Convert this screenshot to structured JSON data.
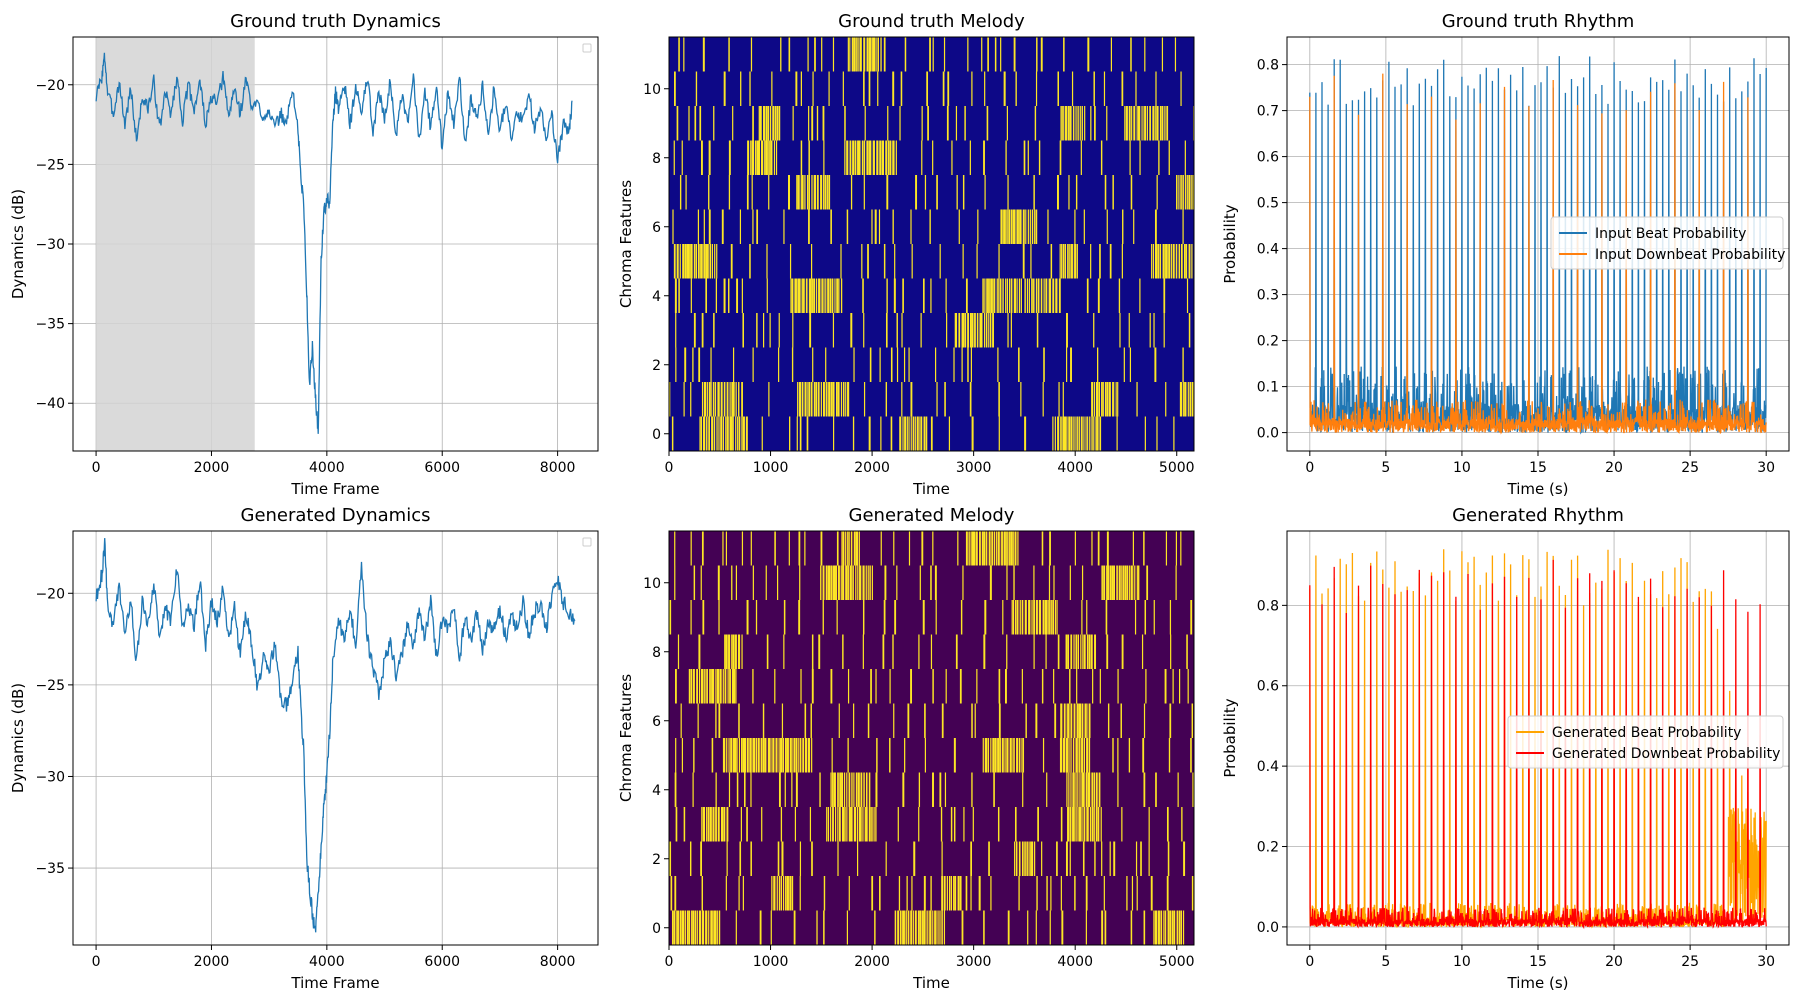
{
  "colors": {
    "blue": "#1f77b4",
    "orange": "#ff7f0e",
    "gen_beat": "#ffa500",
    "gen_downbeat": "#ff0000",
    "gray_region": "#d3d3d3",
    "plasma_bg": "#0d0887",
    "viridis_bg": "#440154",
    "active": "#fde725",
    "grid": "#b0b0b0"
  },
  "chart_data": [
    {
      "id": "gt_dynamics",
      "type": "line",
      "title": "Ground truth Dynamics",
      "xlabel": "Time Frame",
      "ylabel": "Dynamics (dB)",
      "xlim": [
        -400,
        8700
      ],
      "ylim": [
        -43,
        -17
      ],
      "xticks": [
        0,
        2000,
        4000,
        6000,
        8000
      ],
      "yticks": [
        -40,
        -35,
        -30,
        -25,
        -20
      ],
      "grid": true,
      "highlight_span": [
        0,
        2750
      ],
      "empty_legend": true,
      "series": [
        {
          "values_x": [
            0,
            100,
            150,
            200,
            300,
            400,
            500,
            600,
            700,
            800,
            900,
            1000,
            1100,
            1200,
            1300,
            1400,
            1500,
            1600,
            1700,
            1800,
            1900,
            2000,
            2100,
            2200,
            2300,
            2400,
            2500,
            2600,
            2700,
            2800,
            2900,
            3000,
            3100,
            3200,
            3300,
            3400,
            3500,
            3550,
            3600,
            3650,
            3700,
            3750,
            3800,
            3850,
            3900,
            3950,
            4000,
            4050,
            4100,
            4150,
            4200,
            4300,
            4400,
            4500,
            4600,
            4700,
            4800,
            4900,
            5000,
            5100,
            5200,
            5300,
            5400,
            5500,
            5600,
            5700,
            5800,
            5900,
            6000,
            6100,
            6200,
            6300,
            6400,
            6500,
            6600,
            6700,
            6800,
            6900,
            7000,
            7100,
            7200,
            7300,
            7400,
            7500,
            7600,
            7700,
            7800,
            7900,
            8000,
            8100,
            8200,
            8250
          ],
          "values_y": [
            -20.8,
            -19.5,
            -18.2,
            -20.5,
            -21.8,
            -19.8,
            -22.5,
            -20.2,
            -23.5,
            -20.8,
            -21.5,
            -19.8,
            -22.8,
            -20.5,
            -21.8,
            -19.5,
            -22.2,
            -20.0,
            -21.5,
            -19.8,
            -22.5,
            -20.8,
            -21.2,
            -19.5,
            -22.0,
            -20.2,
            -21.8,
            -19.6,
            -21.5,
            -21.2,
            -22.0,
            -21.5,
            -22.8,
            -21.8,
            -22.5,
            -20.2,
            -22.8,
            -25.8,
            -27.5,
            -33.0,
            -38.8,
            -36.5,
            -39.5,
            -41.8,
            -31.0,
            -28.0,
            -27.2,
            -27.5,
            -22.5,
            -20.5,
            -21.5,
            -19.8,
            -22.5,
            -20.2,
            -21.8,
            -19.5,
            -22.8,
            -20.5,
            -22.0,
            -19.8,
            -23.2,
            -20.8,
            -22.5,
            -19.5,
            -23.5,
            -20.2,
            -22.8,
            -19.8,
            -24.0,
            -20.5,
            -22.5,
            -19.6,
            -23.8,
            -20.8,
            -22.2,
            -20.0,
            -23.0,
            -20.2,
            -22.8,
            -21.0,
            -23.5,
            -21.8,
            -22.2,
            -20.5,
            -22.8,
            -21.5,
            -23.2,
            -21.8,
            -24.8,
            -22.5,
            -23.0,
            -21.0
          ]
        }
      ]
    },
    {
      "id": "gt_melody",
      "type": "heatmap",
      "title": "Ground truth Melody",
      "xlabel": "Time",
      "ylabel": "Chroma Features",
      "xlim": [
        0,
        5170
      ],
      "ylim": [
        -0.5,
        11.5
      ],
      "xticks": [
        0,
        1000,
        2000,
        3000,
        4000,
        5000
      ],
      "yticks": [
        0,
        2,
        4,
        6,
        8,
        10
      ],
      "colormap": "plasma",
      "seed": 7
    },
    {
      "id": "gt_rhythm",
      "type": "line",
      "title": "Ground truth Rhythm",
      "xlabel": "Time (s)",
      "ylabel": "Probability",
      "xlim": [
        -1.5,
        31.5
      ],
      "ylim": [
        -0.04,
        0.86
      ],
      "xticks": [
        0,
        5,
        10,
        15,
        20,
        25,
        30
      ],
      "yticks": [
        0.0,
        0.1,
        0.2,
        0.3,
        0.4,
        0.5,
        0.6,
        0.7,
        0.8
      ],
      "grid": true,
      "legend_position": "center-right",
      "series": [
        {
          "name": "Input Beat Probability",
          "color_key": "blue",
          "beat_period": 0.4,
          "peak_range": [
            0.71,
            0.82
          ],
          "noise": 0.12
        },
        {
          "name": "Input Downbeat Probability",
          "color_key": "orange",
          "beat_period": 1.6,
          "peak_range": [
            0.68,
            0.79
          ],
          "noise": 0.06,
          "first_peak": 0.73,
          "last_peak": 0.23
        }
      ]
    },
    {
      "id": "gen_dynamics",
      "type": "line",
      "title": "Generated Dynamics",
      "xlabel": "Time Frame",
      "ylabel": "Dynamics (dB)",
      "xlim": [
        -400,
        8700
      ],
      "ylim": [
        -39.2,
        -16.6
      ],
      "xticks": [
        0,
        2000,
        4000,
        6000,
        8000
      ],
      "yticks": [
        -35,
        -30,
        -25,
        -20
      ],
      "grid": true,
      "empty_legend": true,
      "series": [
        {
          "values_x": [
            0,
            100,
            150,
            200,
            300,
            400,
            500,
            600,
            700,
            800,
            900,
            1000,
            1100,
            1200,
            1300,
            1400,
            1500,
            1600,
            1700,
            1800,
            1900,
            2000,
            2100,
            2200,
            2300,
            2400,
            2500,
            2600,
            2700,
            2800,
            2900,
            3000,
            3100,
            3200,
            3300,
            3400,
            3500,
            3550,
            3600,
            3650,
            3700,
            3750,
            3800,
            3850,
            3900,
            3950,
            4000,
            4050,
            4100,
            4200,
            4300,
            4400,
            4500,
            4600,
            4700,
            4800,
            4900,
            5000,
            5100,
            5200,
            5300,
            5400,
            5500,
            5600,
            5700,
            5800,
            5900,
            6000,
            6100,
            6200,
            6300,
            6400,
            6500,
            6600,
            6700,
            6800,
            6900,
            7000,
            7100,
            7200,
            7300,
            7400,
            7500,
            7600,
            7700,
            7800,
            7900,
            8000,
            8100,
            8200,
            8300
          ],
          "values_y": [
            -20.3,
            -19.0,
            -17.2,
            -20.5,
            -21.8,
            -19.5,
            -22.5,
            -20.2,
            -23.8,
            -20.5,
            -21.8,
            -19.5,
            -22.5,
            -20.8,
            -21.5,
            -18.5,
            -22.0,
            -20.5,
            -21.8,
            -19.2,
            -22.8,
            -20.5,
            -21.5,
            -19.8,
            -22.5,
            -20.8,
            -23.5,
            -21.0,
            -22.8,
            -25.2,
            -23.5,
            -24.5,
            -22.5,
            -25.8,
            -26.2,
            -25.0,
            -23.0,
            -26.5,
            -28.5,
            -34.5,
            -36.0,
            -37.5,
            -38.6,
            -36.5,
            -34.0,
            -31.5,
            -30.0,
            -27.5,
            -24.0,
            -21.5,
            -22.5,
            -20.8,
            -22.8,
            -18.5,
            -22.5,
            -24.0,
            -25.5,
            -23.8,
            -22.5,
            -24.5,
            -23.5,
            -21.5,
            -23.0,
            -21.0,
            -22.5,
            -20.5,
            -23.5,
            -21.5,
            -22.0,
            -20.5,
            -23.5,
            -21.2,
            -22.8,
            -21.0,
            -23.0,
            -21.5,
            -22.0,
            -20.8,
            -22.5,
            -21.2,
            -22.0,
            -20.5,
            -22.2,
            -21.0,
            -20.5,
            -22.0,
            -20.2,
            -19.2,
            -20.5,
            -21.0,
            -21.5
          ]
        }
      ]
    },
    {
      "id": "gen_melody",
      "type": "heatmap",
      "title": "Generated Melody",
      "xlabel": "Time",
      "ylabel": "Chroma Features",
      "xlim": [
        0,
        5170
      ],
      "ylim": [
        -0.5,
        11.5
      ],
      "xticks": [
        0,
        1000,
        2000,
        3000,
        4000,
        5000
      ],
      "yticks": [
        0,
        2,
        4,
        6,
        8,
        10
      ],
      "colormap": "viridis",
      "seed": 19
    },
    {
      "id": "gen_rhythm",
      "type": "line",
      "title": "Generated Rhythm",
      "xlabel": "Time (s)",
      "ylabel": "Probability",
      "xlim": [
        -1.5,
        31.5
      ],
      "ylim": [
        -0.045,
        0.985
      ],
      "xticks": [
        0,
        5,
        10,
        15,
        20,
        25,
        30
      ],
      "yticks": [
        0.0,
        0.2,
        0.4,
        0.6,
        0.8
      ],
      "grid": true,
      "legend_position": "center-right",
      "series": [
        {
          "name": "Generated Beat Probability",
          "color_key": "gen_beat",
          "beat_period": 0.4,
          "peak_range": [
            0.8,
            0.94
          ],
          "noise": 0.05
        },
        {
          "name": "Generated Downbeat Probability",
          "color_key": "gen_downbeat",
          "beat_period": 0.8,
          "peak_range": [
            0.78,
            0.92
          ],
          "noise": 0.04,
          "first_peak": 0.85
        }
      ]
    }
  ]
}
